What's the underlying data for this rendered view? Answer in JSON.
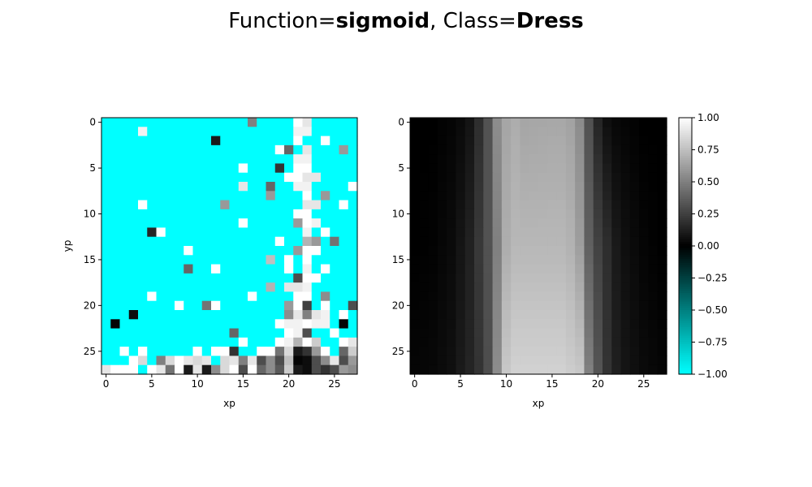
{
  "title": {
    "prefix": "Function=",
    "function": "sigmoid",
    "separator": ", Class=",
    "class": "Dress"
  },
  "chart_data": [
    {
      "type": "heatmap",
      "xlabel": "xp",
      "ylabel": "yp",
      "xlim": [
        -0.5,
        27.5
      ],
      "ylim": [
        27.5,
        -0.5
      ],
      "xticks": [
        0,
        5,
        10,
        15,
        20,
        25
      ],
      "yticks": [
        0,
        5,
        10,
        15,
        20,
        25
      ],
      "colormap": "cyan-black-white",
      "vmin": -1.0,
      "vmax": 1.0,
      "background_value": -1.0,
      "cells": [
        [
          0,
          16,
          0.5
        ],
        [
          0,
          21,
          1.0
        ],
        [
          0,
          22,
          0.9
        ],
        [
          1,
          4,
          0.95
        ],
        [
          1,
          21,
          0.95
        ],
        [
          1,
          22,
          0.95
        ],
        [
          2,
          12,
          0.1
        ],
        [
          2,
          21,
          1.0
        ],
        [
          2,
          24,
          1.0
        ],
        [
          3,
          19,
          1.0
        ],
        [
          3,
          20,
          0.4
        ],
        [
          3,
          22,
          0.9
        ],
        [
          3,
          26,
          0.6
        ],
        [
          4,
          21,
          0.95
        ],
        [
          4,
          22,
          0.95
        ],
        [
          5,
          15,
          1.0
        ],
        [
          5,
          19,
          0.2
        ],
        [
          5,
          21,
          1.0
        ],
        [
          5,
          22,
          1.0
        ],
        [
          6,
          20,
          1.0
        ],
        [
          6,
          21,
          1.0
        ],
        [
          6,
          22,
          0.9
        ],
        [
          6,
          23,
          0.9
        ],
        [
          7,
          15,
          0.9
        ],
        [
          7,
          18,
          0.4
        ],
        [
          7,
          21,
          0.95
        ],
        [
          7,
          22,
          0.95
        ],
        [
          7,
          27,
          1.0
        ],
        [
          8,
          18,
          0.6
        ],
        [
          8,
          22,
          1.0
        ],
        [
          8,
          24,
          0.6
        ],
        [
          9,
          4,
          1.0
        ],
        [
          9,
          13,
          0.6
        ],
        [
          9,
          22,
          0.9
        ],
        [
          9,
          23,
          0.9
        ],
        [
          9,
          26,
          1.0
        ],
        [
          10,
          21,
          1.0
        ],
        [
          10,
          22,
          1.0
        ],
        [
          11,
          15,
          1.0
        ],
        [
          11,
          21,
          0.6
        ],
        [
          11,
          22,
          1.0
        ],
        [
          11,
          23,
          0.95
        ],
        [
          12,
          5,
          0.15
        ],
        [
          12,
          6,
          1.0
        ],
        [
          12,
          22,
          0.95
        ],
        [
          12,
          24,
          1.0
        ],
        [
          13,
          19,
          1.0
        ],
        [
          13,
          22,
          0.7
        ],
        [
          13,
          23,
          0.6
        ],
        [
          13,
          25,
          0.45
        ],
        [
          14,
          9,
          1.0
        ],
        [
          14,
          21,
          0.6
        ],
        [
          14,
          22,
          1.0
        ],
        [
          14,
          23,
          1.0
        ],
        [
          15,
          18,
          0.75
        ],
        [
          15,
          20,
          1.0
        ],
        [
          15,
          22,
          1.0
        ],
        [
          16,
          9,
          0.4
        ],
        [
          16,
          12,
          1.0
        ],
        [
          16,
          20,
          1.0
        ],
        [
          16,
          22,
          0.95
        ],
        [
          16,
          24,
          1.0
        ],
        [
          17,
          21,
          0.3
        ],
        [
          17,
          22,
          1.0
        ],
        [
          17,
          23,
          1.0
        ],
        [
          18,
          18,
          0.7
        ],
        [
          18,
          20,
          0.9
        ],
        [
          18,
          21,
          0.9
        ],
        [
          18,
          22,
          0.95
        ],
        [
          19,
          5,
          1.0
        ],
        [
          19,
          16,
          1.0
        ],
        [
          19,
          21,
          1.0
        ],
        [
          19,
          22,
          1.0
        ],
        [
          19,
          24,
          0.55
        ],
        [
          20,
          8,
          1.0
        ],
        [
          20,
          11,
          0.45
        ],
        [
          20,
          12,
          1.0
        ],
        [
          20,
          20,
          0.6
        ],
        [
          20,
          21,
          1.0
        ],
        [
          20,
          22,
          0.25
        ],
        [
          20,
          24,
          1.0
        ],
        [
          20,
          27,
          0.3
        ],
        [
          21,
          3,
          0.05
        ],
        [
          21,
          20,
          0.55
        ],
        [
          21,
          21,
          0.9
        ],
        [
          21,
          22,
          0.5
        ],
        [
          21,
          23,
          0.9
        ],
        [
          21,
          24,
          0.95
        ],
        [
          21,
          26,
          1.0
        ],
        [
          22,
          1,
          0.02
        ],
        [
          22,
          19,
          1.0
        ],
        [
          22,
          20,
          0.95
        ],
        [
          22,
          21,
          0.95
        ],
        [
          22,
          22,
          1.0
        ],
        [
          22,
          23,
          0.95
        ],
        [
          22,
          24,
          0.95
        ],
        [
          22,
          26,
          0.02
        ],
        [
          23,
          14,
          0.4
        ],
        [
          23,
          20,
          1.0
        ],
        [
          23,
          21,
          0.95
        ],
        [
          23,
          22,
          0.3
        ],
        [
          23,
          25,
          1.0
        ],
        [
          24,
          15,
          1.0
        ],
        [
          24,
          19,
          1.0
        ],
        [
          24,
          20,
          0.95
        ],
        [
          24,
          21,
          0.7
        ],
        [
          24,
          22,
          1.0
        ],
        [
          24,
          23,
          0.8
        ],
        [
          24,
          26,
          1.0
        ],
        [
          24,
          27,
          0.9
        ],
        [
          25,
          2,
          1.0
        ],
        [
          25,
          4,
          1.0
        ],
        [
          25,
          10,
          1.0
        ],
        [
          25,
          12,
          1.0
        ],
        [
          25,
          13,
          1.0
        ],
        [
          25,
          14,
          0.2
        ],
        [
          25,
          17,
          1.0
        ],
        [
          25,
          18,
          1.0
        ],
        [
          25,
          19,
          0.45
        ],
        [
          25,
          20,
          0.85
        ],
        [
          25,
          21,
          0.1
        ],
        [
          25,
          22,
          0.2
        ],
        [
          25,
          23,
          0.6
        ],
        [
          25,
          24,
          1.0
        ],
        [
          25,
          26,
          0.4
        ],
        [
          25,
          27,
          0.8
        ],
        [
          26,
          3,
          1.0
        ],
        [
          26,
          4,
          0.85
        ],
        [
          26,
          6,
          0.5
        ],
        [
          26,
          7,
          0.85
        ],
        [
          26,
          8,
          1.0
        ],
        [
          26,
          9,
          0.9
        ],
        [
          26,
          10,
          0.85
        ],
        [
          26,
          11,
          0.9
        ],
        [
          26,
          13,
          0.85
        ],
        [
          26,
          14,
          0.9
        ],
        [
          26,
          15,
          0.5
        ],
        [
          26,
          16,
          0.9
        ],
        [
          26,
          17,
          0.3
        ],
        [
          26,
          18,
          0.55
        ],
        [
          26,
          19,
          0.3
        ],
        [
          26,
          20,
          0.75
        ],
        [
          26,
          21,
          0.02
        ],
        [
          26,
          22,
          0.05
        ],
        [
          26,
          23,
          0.3
        ],
        [
          26,
          24,
          0.55
        ],
        [
          26,
          25,
          0.9
        ],
        [
          26,
          26,
          0.3
        ],
        [
          26,
          27,
          0.6
        ],
        [
          27,
          0,
          0.9
        ],
        [
          27,
          1,
          1.0
        ],
        [
          27,
          2,
          1.0
        ],
        [
          27,
          3,
          1.0
        ],
        [
          27,
          5,
          1.0
        ],
        [
          27,
          6,
          0.9
        ],
        [
          27,
          7,
          0.45
        ],
        [
          27,
          8,
          1.0
        ],
        [
          27,
          9,
          0.1
        ],
        [
          27,
          10,
          0.9
        ],
        [
          27,
          11,
          0.1
        ],
        [
          27,
          12,
          0.55
        ],
        [
          27,
          13,
          0.85
        ],
        [
          27,
          14,
          1.0
        ],
        [
          27,
          15,
          0.3
        ],
        [
          27,
          16,
          1.0
        ],
        [
          27,
          17,
          0.4
        ],
        [
          27,
          18,
          0.55
        ],
        [
          27,
          19,
          0.35
        ],
        [
          27,
          20,
          0.8
        ],
        [
          27,
          21,
          0.1
        ],
        [
          27,
          22,
          0.05
        ],
        [
          27,
          23,
          0.3
        ],
        [
          27,
          24,
          0.2
        ],
        [
          27,
          25,
          0.3
        ],
        [
          27,
          26,
          0.6
        ],
        [
          27,
          27,
          0.55
        ]
      ]
    },
    {
      "type": "heatmap",
      "xlabel": "xp",
      "xlim": [
        -0.5,
        27.5
      ],
      "ylim": [
        27.5,
        -0.5
      ],
      "xticks": [
        0,
        5,
        10,
        15,
        20,
        25
      ],
      "yticks": [
        0,
        5,
        10,
        15,
        20,
        25
      ],
      "colormap": "cyan-black-white",
      "vmin": -1.0,
      "vmax": 1.0,
      "column_profiles": {
        "x_knots": [
          0,
          2,
          4,
          5,
          6,
          7,
          8,
          9,
          10,
          11,
          12,
          15,
          16,
          17,
          18,
          19,
          20,
          21,
          22,
          23,
          25,
          27
        ],
        "top_row": [
          0.0,
          0.0,
          0.02,
          0.04,
          0.08,
          0.18,
          0.32,
          0.55,
          0.65,
          0.68,
          0.65,
          0.66,
          0.66,
          0.64,
          0.55,
          0.32,
          0.15,
          0.06,
          0.03,
          0.02,
          0.0,
          0.0
        ],
        "middle_row": [
          0.0,
          0.01,
          0.04,
          0.08,
          0.13,
          0.22,
          0.32,
          0.5,
          0.68,
          0.72,
          0.72,
          0.72,
          0.72,
          0.7,
          0.62,
          0.38,
          0.26,
          0.18,
          0.1,
          0.06,
          0.02,
          0.0
        ],
        "bottom_row": [
          0.02,
          0.03,
          0.06,
          0.1,
          0.14,
          0.2,
          0.3,
          0.55,
          0.78,
          0.82,
          0.82,
          0.82,
          0.82,
          0.8,
          0.78,
          0.5,
          0.33,
          0.2,
          0.12,
          0.08,
          0.04,
          0.02
        ]
      },
      "colorbar": {
        "ticks": [
          "1.00",
          "0.75",
          "0.50",
          "0.25",
          "0.00",
          "−0.25",
          "−0.50",
          "−0.75",
          "−1.00"
        ],
        "tick_values": [
          1.0,
          0.75,
          0.5,
          0.25,
          0.0,
          -0.25,
          -0.5,
          -0.75,
          -1.0
        ]
      }
    }
  ],
  "colors": {
    "negative_end": "#00ffff",
    "zero": "#000000",
    "positive_end": "#ffffff"
  }
}
